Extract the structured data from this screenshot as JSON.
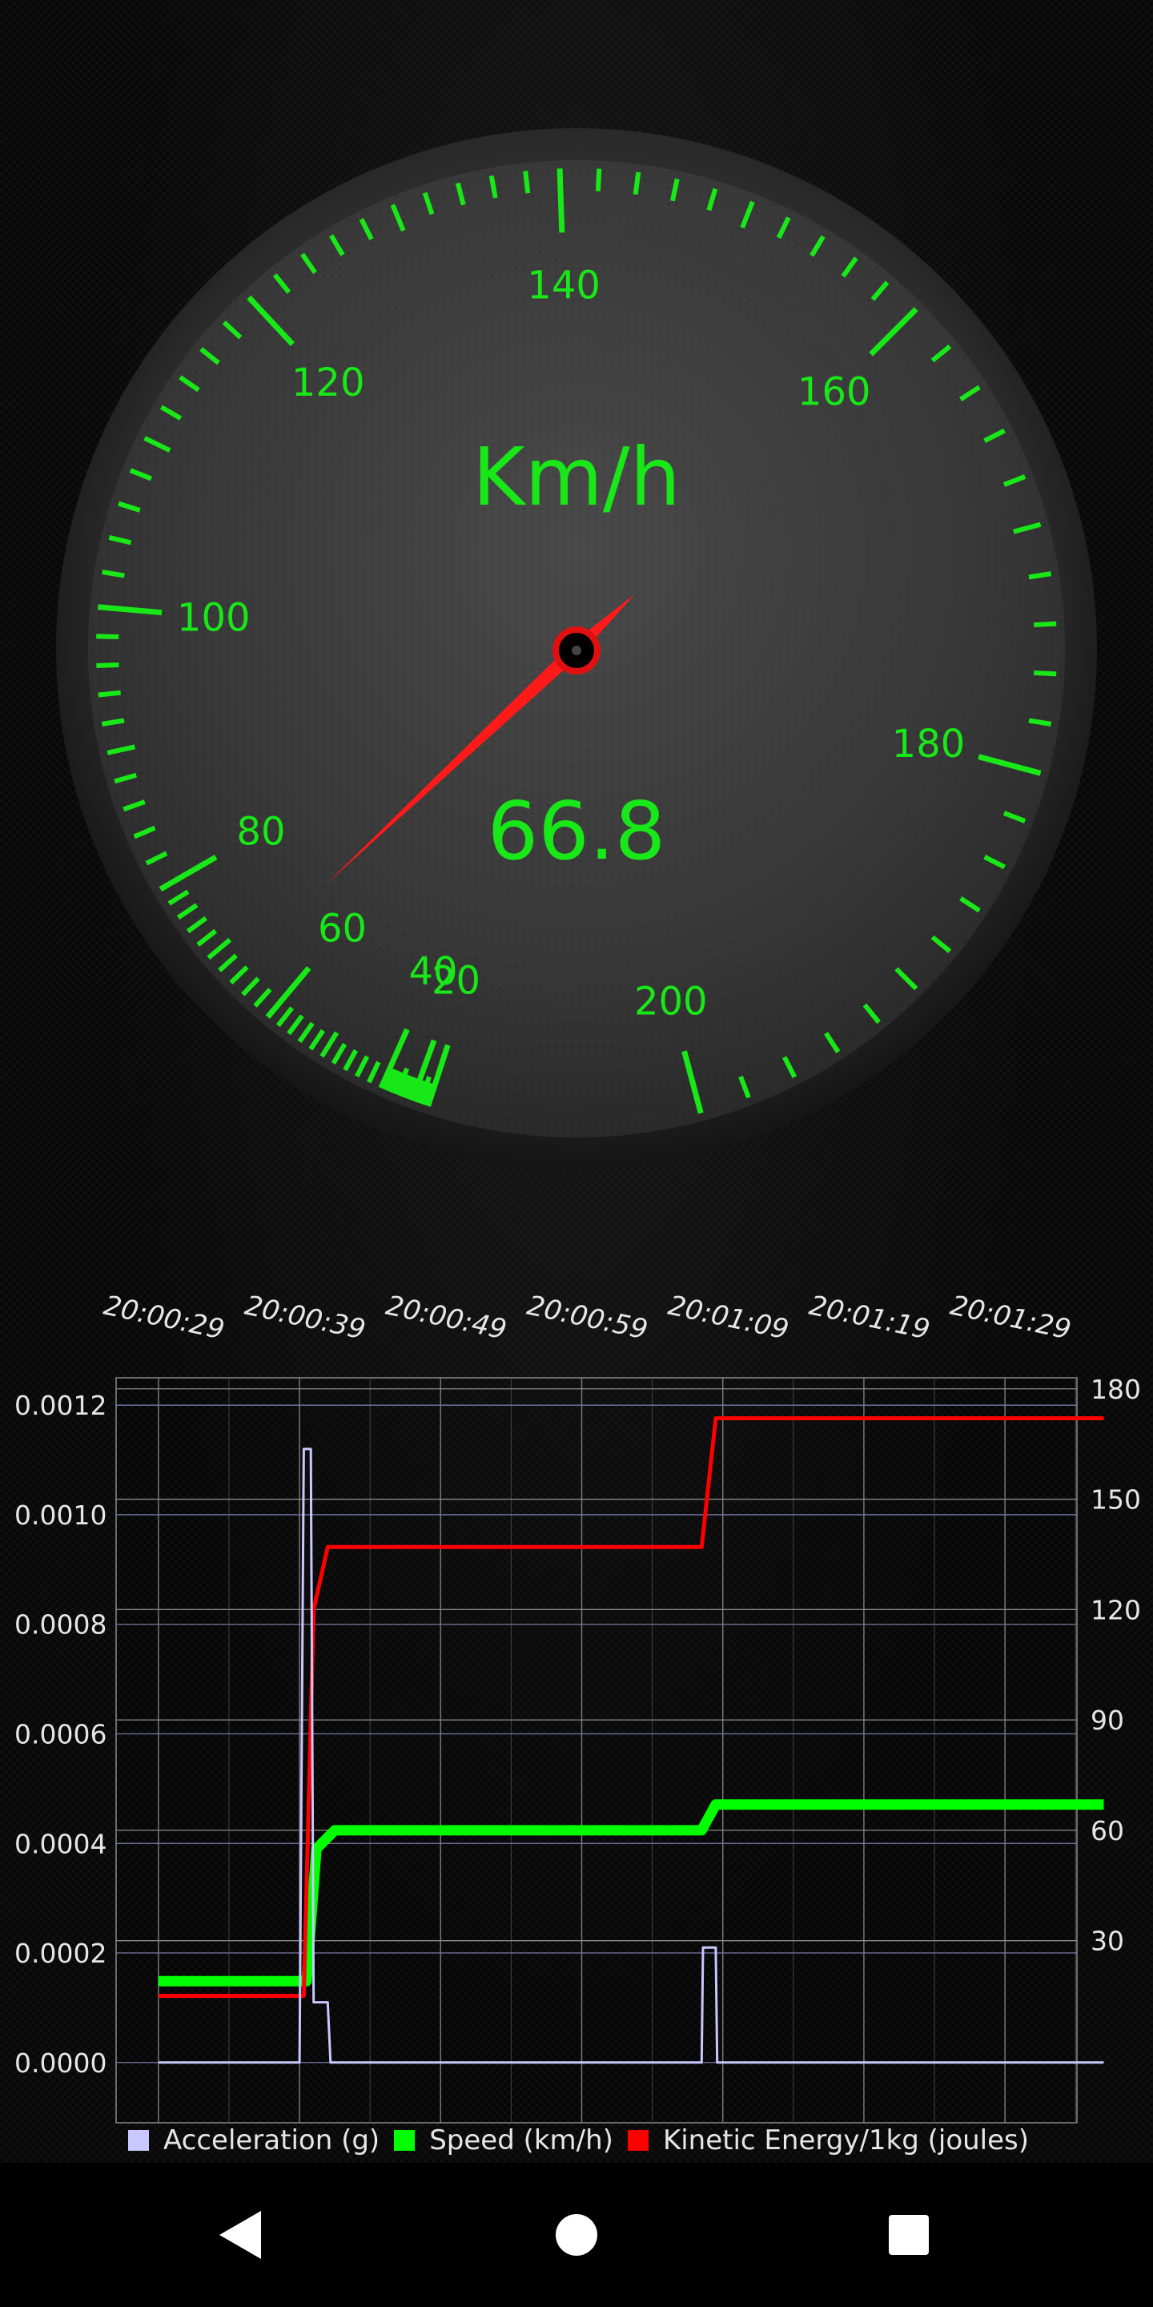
{
  "gauge": {
    "unit": "Km/h",
    "value_text": "66.8",
    "value": 66.8,
    "min": 0,
    "max": 200,
    "labels": [
      "20",
      "40",
      "60",
      "80",
      "100",
      "120",
      "140",
      "160",
      "180",
      "200"
    ],
    "accent_color": "#18e818",
    "needle_color": "#ff1a1a"
  },
  "chart_data": {
    "type": "line",
    "x": [
      "20:00:29",
      "20:00:39",
      "20:00:49",
      "20:00:59",
      "20:01:09",
      "20:01:19",
      "20:01:29"
    ],
    "y_left_ticks": [
      "0.0000",
      "0.0002",
      "0.0004",
      "0.0006",
      "0.0008",
      "0.0010",
      "0.0012"
    ],
    "y_right_ticks": [
      "30",
      "60",
      "90",
      "120",
      "150",
      "180"
    ],
    "ylim_left": [
      0,
      0.0012
    ],
    "ylim_right": [
      15,
      183
    ],
    "grid": true,
    "legend_position": "bottom-left",
    "series": [
      {
        "name": "Acceleration (g)",
        "color": "#c8c8ff",
        "axis": "left",
        "points": [
          [
            "20:00:29",
            0
          ],
          [
            "20:00:39",
            0
          ],
          [
            "20:00:39.3",
            0.00112
          ],
          [
            "20:00:39.8",
            0.00112
          ],
          [
            "20:00:40",
            0.00011
          ],
          [
            "20:00:41",
            0.00011
          ],
          [
            "20:00:41.2",
            0
          ],
          [
            "20:01:07.5",
            0
          ],
          [
            "20:01:07.6",
            0.00021
          ],
          [
            "20:01:08.5",
            0.00021
          ],
          [
            "20:01:08.6",
            0
          ],
          [
            "20:01:36",
            0
          ]
        ]
      },
      {
        "name": "Speed (km/h)",
        "color": "#00ff00",
        "axis": "right",
        "points": [
          [
            "20:00:29",
            19
          ],
          [
            "20:00:39.5",
            19
          ],
          [
            "20:00:40.2",
            55
          ],
          [
            "20:00:41.5",
            60
          ],
          [
            "20:01:07.5",
            60
          ],
          [
            "20:01:08.5",
            67
          ],
          [
            "20:01:36",
            67
          ]
        ]
      },
      {
        "name": "Kinetic Energy/1kg (joules)",
        "color": "#ff0000",
        "axis": "right",
        "points": [
          [
            "20:00:29",
            15
          ],
          [
            "20:00:39.3",
            15
          ],
          [
            "20:00:40",
            120
          ],
          [
            "20:00:41",
            137
          ],
          [
            "20:01:07.5",
            137
          ],
          [
            "20:01:08.5",
            172
          ],
          [
            "20:01:36",
            172
          ]
        ]
      }
    ]
  },
  "legend": {
    "items": [
      {
        "label": "Acceleration (g)",
        "color": "#c8c8ff"
      },
      {
        "label": "Speed (km/h)",
        "color": "#00ff00"
      },
      {
        "label": "Kinetic Energy/1kg (joules)",
        "color": "#ff0000"
      }
    ]
  },
  "navbar": {
    "back_icon": "back-triangle-icon",
    "home_icon": "home-circle-icon",
    "recents_icon": "recents-square-icon"
  }
}
